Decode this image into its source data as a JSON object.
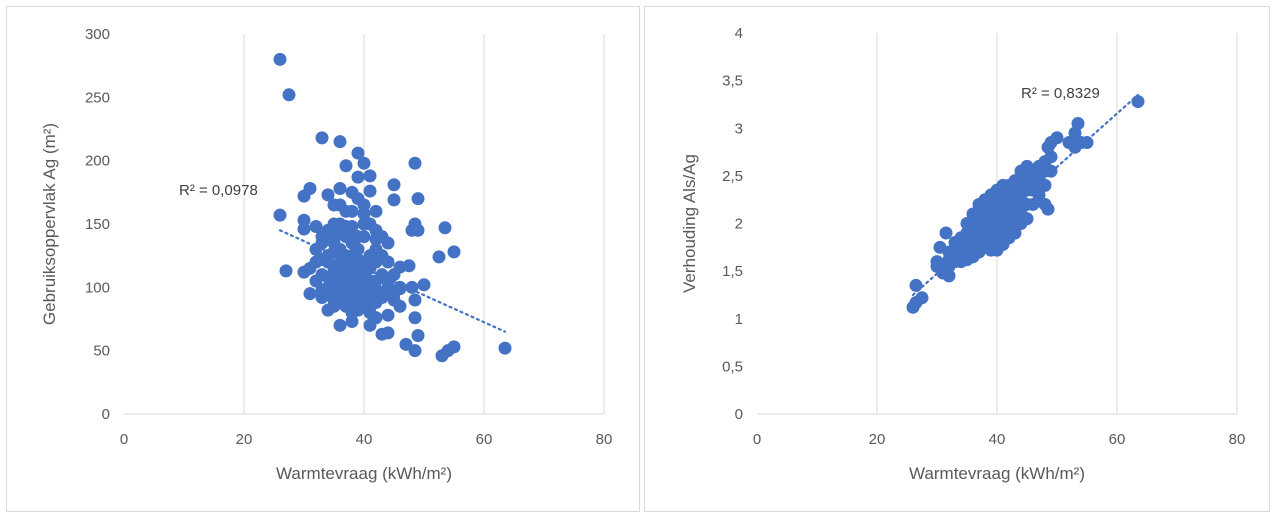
{
  "colors": {
    "marker": "#4472c4",
    "trend": "#4472c4",
    "grid": "#d9d9d9",
    "text": "#595959"
  },
  "chart_data": [
    {
      "type": "scatter",
      "title": "",
      "xlabel": "Warmtevraag (kWh/m²)",
      "ylabel": "Gebruiksoppervlak Ag (m²)",
      "xlim": [
        0,
        80
      ],
      "ylim": [
        0,
        300
      ],
      "x_ticks": [
        "0",
        "20",
        "40",
        "60",
        "80"
      ],
      "y_ticks": [
        "0",
        "50",
        "100",
        "150",
        "200",
        "250",
        "300"
      ],
      "grid": "vertical",
      "trendline": {
        "type": "linear",
        "dotted": true,
        "x": [
          26,
          63.5
        ],
        "y": [
          145,
          65
        ],
        "r2_label": "R² = 0,0978"
      },
      "points": [
        [
          26,
          280
        ],
        [
          27.5,
          252
        ],
        [
          26,
          157
        ],
        [
          27,
          113
        ],
        [
          33,
          218
        ],
        [
          36,
          215
        ],
        [
          39,
          206
        ],
        [
          37,
          196
        ],
        [
          40,
          198
        ],
        [
          39,
          187
        ],
        [
          41,
          188
        ],
        [
          38,
          175
        ],
        [
          41,
          176
        ],
        [
          36,
          178
        ],
        [
          34,
          173
        ],
        [
          30,
          172
        ],
        [
          31,
          178
        ],
        [
          45,
          181
        ],
        [
          48.5,
          198
        ],
        [
          49,
          170
        ],
        [
          45,
          169
        ],
        [
          48.5,
          150
        ],
        [
          48,
          145
        ],
        [
          49,
          145
        ],
        [
          53.5,
          147
        ],
        [
          52.5,
          124
        ],
        [
          55,
          128
        ],
        [
          46,
          116
        ],
        [
          47.5,
          117
        ],
        [
          50,
          102
        ],
        [
          48,
          100
        ],
        [
          46,
          99
        ],
        [
          48.5,
          90
        ],
        [
          48.5,
          76
        ],
        [
          49,
          62
        ],
        [
          44,
          64
        ],
        [
          47,
          55
        ],
        [
          48.5,
          50
        ],
        [
          53,
          46
        ],
        [
          54,
          50
        ],
        [
          55,
          53
        ],
        [
          63.5,
          52
        ],
        [
          30,
          153
        ],
        [
          30,
          146
        ],
        [
          32,
          148
        ],
        [
          31,
          95
        ],
        [
          30,
          112
        ],
        [
          34,
          82
        ],
        [
          36,
          70
        ],
        [
          38,
          73
        ],
        [
          41,
          80
        ],
        [
          42,
          76
        ],
        [
          43,
          63
        ],
        [
          40,
          90
        ],
        [
          39,
          95
        ],
        [
          37,
          100
        ],
        [
          35,
          105
        ],
        [
          33,
          110
        ],
        [
          32,
          120
        ],
        [
          34,
          125
        ],
        [
          36,
          130
        ],
        [
          38,
          135
        ],
        [
          40,
          140
        ],
        [
          42,
          145
        ],
        [
          36,
          150
        ],
        [
          34,
          140
        ],
        [
          37,
          160
        ],
        [
          35,
          165
        ],
        [
          39,
          170
        ],
        [
          40,
          158
        ],
        [
          38,
          148
        ],
        [
          42,
          130
        ],
        [
          44,
          135
        ],
        [
          44,
          120
        ],
        [
          43,
          110
        ],
        [
          44,
          100
        ],
        [
          45,
          90
        ],
        [
          46,
          85
        ],
        [
          44,
          78
        ],
        [
          41,
          70
        ],
        [
          39,
          82
        ],
        [
          37,
          85
        ],
        [
          35,
          90
        ],
        [
          33,
          98
        ],
        [
          32,
          105
        ],
        [
          31,
          115
        ],
        [
          32,
          130
        ],
        [
          33,
          135
        ],
        [
          34,
          145
        ],
        [
          35,
          150
        ],
        [
          36,
          142
        ],
        [
          38,
          125
        ],
        [
          39,
          118
        ],
        [
          40,
          112
        ],
        [
          41,
          105
        ],
        [
          42,
          98
        ],
        [
          43,
          92
        ],
        [
          40,
          120
        ],
        [
          39,
          130
        ],
        [
          37,
          140
        ],
        [
          36,
          120
        ],
        [
          35,
          115
        ],
        [
          37,
          110
        ],
        [
          38,
          105
        ],
        [
          36,
          95
        ],
        [
          38,
          90
        ],
        [
          40,
          100
        ],
        [
          41,
          115
        ],
        [
          42,
          120
        ],
        [
          43,
          125
        ],
        [
          37,
          125
        ],
        [
          35,
          128
        ],
        [
          34,
          120
        ],
        [
          33,
          122
        ],
        [
          34,
          108
        ],
        [
          36,
          102
        ],
        [
          38,
          112
        ],
        [
          40,
          108
        ],
        [
          39,
          100
        ],
        [
          37,
          95
        ],
        [
          38,
          80
        ],
        [
          40,
          85
        ],
        [
          42,
          88
        ],
        [
          41,
          95
        ],
        [
          39,
          140
        ],
        [
          41,
          150
        ],
        [
          42,
          160
        ],
        [
          40,
          165
        ],
        [
          38,
          160
        ],
        [
          36,
          165
        ],
        [
          35,
          135
        ],
        [
          33,
          140
        ],
        [
          45,
          95
        ],
        [
          44,
          105
        ],
        [
          45,
          110
        ],
        [
          46,
          100
        ],
        [
          43,
          140
        ],
        [
          42,
          105
        ],
        [
          39,
          110
        ],
        [
          37,
          118
        ],
        [
          36,
          110
        ],
        [
          35,
          100
        ],
        [
          34,
          95
        ],
        [
          39,
          122
        ],
        [
          41,
          125
        ],
        [
          38,
          98
        ],
        [
          37,
          102
        ],
        [
          35,
          112
        ],
        [
          36,
          118
        ],
        [
          38,
          120
        ],
        [
          40,
          95
        ],
        [
          39,
          88
        ],
        [
          41,
          85
        ],
        [
          36,
          88
        ],
        [
          35,
          85
        ],
        [
          33,
          92
        ],
        [
          34,
          100
        ],
        [
          38,
          142
        ],
        [
          37,
          148
        ],
        [
          40,
          150
        ],
        [
          42,
          138
        ]
      ]
    },
    {
      "type": "scatter",
      "title": "",
      "xlabel": "Warmtevraag (kWh/m²)",
      "ylabel": "Verhouding  Als/Ag",
      "xlim": [
        0,
        80
      ],
      "ylim": [
        0,
        4
      ],
      "x_ticks": [
        "0",
        "20",
        "40",
        "60",
        "80"
      ],
      "y_ticks": [
        "0",
        "0,5",
        "1",
        "1,5",
        "2",
        "2,5",
        "3",
        "3,5",
        "4"
      ],
      "grid": "vertical",
      "trendline": {
        "type": "linear",
        "dotted": true,
        "x": [
          26,
          63.5
        ],
        "y": [
          1.25,
          3.35
        ],
        "r2_label": "R² = 0,8329"
      },
      "points": [
        [
          26,
          1.12
        ],
        [
          26.5,
          1.17
        ],
        [
          27.5,
          1.22
        ],
        [
          26.5,
          1.35
        ],
        [
          30,
          1.55
        ],
        [
          31,
          1.48
        ],
        [
          30.5,
          1.75
        ],
        [
          31.5,
          1.9
        ],
        [
          32,
          1.45
        ],
        [
          33,
          1.6
        ],
        [
          32,
          1.7
        ],
        [
          33,
          1.8
        ],
        [
          34,
          1.65
        ],
        [
          34,
          1.75
        ],
        [
          34,
          1.85
        ],
        [
          35,
          1.7
        ],
        [
          35,
          1.8
        ],
        [
          35,
          1.9
        ],
        [
          35,
          2.0
        ],
        [
          36,
          1.65
        ],
        [
          36,
          1.75
        ],
        [
          36,
          1.85
        ],
        [
          36,
          1.95
        ],
        [
          36,
          2.05
        ],
        [
          37,
          1.7
        ],
        [
          37,
          1.8
        ],
        [
          37,
          1.9
        ],
        [
          37,
          2.0
        ],
        [
          37,
          2.1
        ],
        [
          38,
          1.75
        ],
        [
          38,
          1.85
        ],
        [
          38,
          1.95
        ],
        [
          38,
          2.05
        ],
        [
          38,
          2.15
        ],
        [
          39,
          1.8
        ],
        [
          39,
          1.9
        ],
        [
          39,
          2.0
        ],
        [
          39,
          2.1
        ],
        [
          39,
          2.25
        ],
        [
          40,
          1.75
        ],
        [
          40,
          1.9
        ],
        [
          40,
          2.0
        ],
        [
          40,
          2.1
        ],
        [
          40,
          2.2
        ],
        [
          41,
          1.85
        ],
        [
          41,
          1.95
        ],
        [
          41,
          2.05
        ],
        [
          41,
          2.15
        ],
        [
          41,
          2.3
        ],
        [
          42,
          1.9
        ],
        [
          42,
          2.0
        ],
        [
          42,
          2.1
        ],
        [
          42,
          2.2
        ],
        [
          42,
          2.4
        ],
        [
          43,
          1.95
        ],
        [
          43,
          2.05
        ],
        [
          43,
          2.15
        ],
        [
          43,
          2.3
        ],
        [
          43,
          2.45
        ],
        [
          44,
          2.0
        ],
        [
          44,
          2.1
        ],
        [
          44,
          2.25
        ],
        [
          44,
          2.4
        ],
        [
          44,
          2.55
        ],
        [
          45,
          2.05
        ],
        [
          45,
          2.2
        ],
        [
          45,
          2.35
        ],
        [
          45,
          2.6
        ],
        [
          46,
          2.2
        ],
        [
          46,
          2.35
        ],
        [
          46,
          2.5
        ],
        [
          47,
          2.3
        ],
        [
          47,
          2.45
        ],
        [
          47,
          2.6
        ],
        [
          48,
          2.2
        ],
        [
          48,
          2.4
        ],
        [
          48,
          2.55
        ],
        [
          48.5,
          2.15
        ],
        [
          49,
          2.55
        ],
        [
          49,
          2.7
        ],
        [
          48.5,
          2.8
        ],
        [
          49,
          2.85
        ],
        [
          50,
          2.9
        ],
        [
          52,
          2.85
        ],
        [
          53,
          2.8
        ],
        [
          53,
          2.95
        ],
        [
          53.5,
          3.05
        ],
        [
          54,
          2.85
        ],
        [
          55,
          2.85
        ],
        [
          63.5,
          3.28
        ],
        [
          30,
          1.6
        ],
        [
          31,
          1.55
        ],
        [
          32,
          1.55
        ],
        [
          33,
          1.65
        ],
        [
          34,
          1.6
        ],
        [
          35,
          1.62
        ],
        [
          36,
          2.1
        ],
        [
          37,
          2.2
        ],
        [
          38,
          2.25
        ],
        [
          39,
          2.3
        ],
        [
          40,
          2.35
        ],
        [
          41,
          2.4
        ],
        [
          42,
          2.3
        ],
        [
          43,
          2.35
        ],
        [
          44,
          2.45
        ],
        [
          45,
          2.5
        ],
        [
          46,
          2.4
        ],
        [
          47,
          2.55
        ],
        [
          48,
          2.65
        ],
        [
          40,
          1.72
        ],
        [
          39,
          1.72
        ],
        [
          41,
          1.78
        ],
        [
          42,
          1.85
        ],
        [
          43,
          1.9
        ],
        [
          36,
          1.9
        ],
        [
          37,
          1.95
        ],
        [
          38,
          2.0
        ],
        [
          39,
          2.05
        ],
        [
          40,
          2.05
        ],
        [
          41,
          2.1
        ],
        [
          42,
          2.15
        ],
        [
          35,
          1.75
        ],
        [
          34,
          1.7
        ],
        [
          33,
          1.7
        ],
        [
          32,
          1.62
        ]
      ]
    }
  ]
}
